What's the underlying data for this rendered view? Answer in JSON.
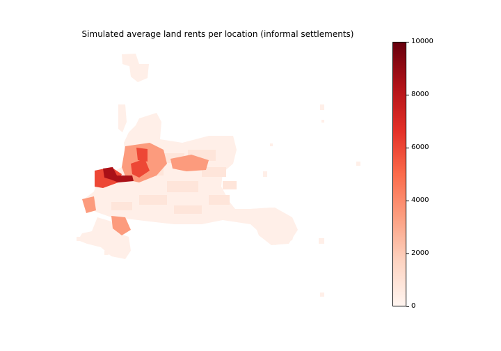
{
  "figure": {
    "title": "Simulated average land rents per location (informal settlements)"
  },
  "colorbar": {
    "colormap": "Reds",
    "min": 0,
    "max": 10000,
    "ticks": [
      {
        "value": 0,
        "label": "0"
      },
      {
        "value": 2000,
        "label": "2000"
      },
      {
        "value": 4000,
        "label": "4000"
      },
      {
        "value": 6000,
        "label": "6000"
      },
      {
        "value": 8000,
        "label": "8000"
      },
      {
        "value": 10000,
        "label": "10000"
      }
    ],
    "colors": [
      "#fff5f0",
      "#fdd4c2",
      "#fca082",
      "#fb6b4b",
      "#e32f27",
      "#b11218",
      "#67000d"
    ]
  },
  "map": {
    "type": "raster-heatmap",
    "value_units": "land rent",
    "description_levels": [
      {
        "level": "background",
        "value": 300
      },
      {
        "level": "light",
        "value": 800
      },
      {
        "level": "medium",
        "value": 3500
      },
      {
        "level": "high",
        "value": 6000
      },
      {
        "level": "peak",
        "value": 8500
      }
    ]
  }
}
